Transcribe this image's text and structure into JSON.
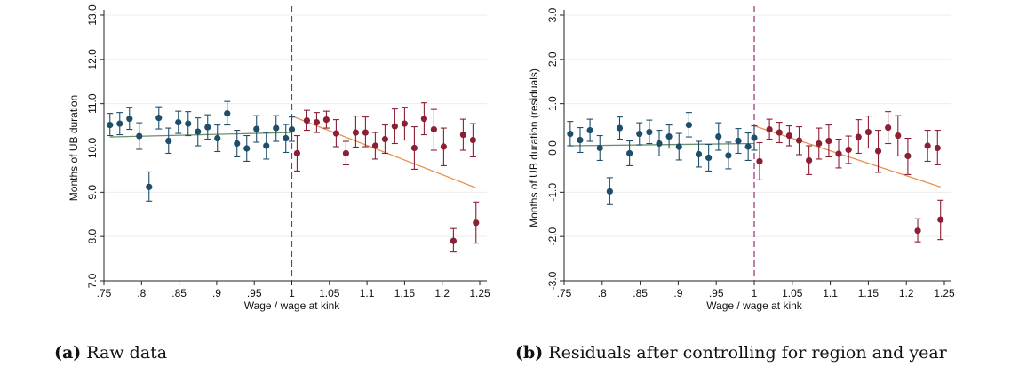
{
  "chart_data": [
    {
      "type": "scatter",
      "caption_tag": "(a)",
      "caption_text": "Raw data",
      "xlabel": "Wage / wage at kink",
      "ylabel": "Months of UB duration",
      "xlim": [
        0.75,
        1.25
      ],
      "ylim": [
        7.0,
        13.0
      ],
      "xticks": [
        ".75",
        ".8",
        ".85",
        ".9",
        ".95",
        "1",
        "1.05",
        "1.1",
        "1.15",
        "1.2",
        "1.25"
      ],
      "xtick_values": [
        0.75,
        0.8,
        0.85,
        0.9,
        0.95,
        1.0,
        1.05,
        1.1,
        1.15,
        1.2,
        1.25
      ],
      "yticks": [
        "7.0",
        "8.0",
        "9.0",
        "10.0",
        "11.0",
        "12.0",
        "13.0"
      ],
      "ytick_values": [
        7,
        8,
        9,
        10,
        11,
        12,
        13
      ],
      "kink_x": 1.0,
      "grid": true,
      "colors": {
        "left": "#1f4e6b",
        "right": "#8b1f33",
        "fit_left": "#6b8f6b",
        "fit_right": "#e8914f",
        "kink": "#9b2a6e"
      },
      "series": [
        {
          "side": "left",
          "x": [
            0.758,
            0.771,
            0.784,
            0.797,
            0.81,
            0.823,
            0.836,
            0.849,
            0.862,
            0.875,
            0.888,
            0.901,
            0.914,
            0.927,
            0.94,
            0.953,
            0.966,
            0.979,
            0.992
          ],
          "y": [
            10.52,
            10.55,
            10.66,
            10.27,
            9.12,
            10.68,
            10.16,
            10.58,
            10.55,
            10.37,
            10.47,
            10.22,
            10.78,
            10.1,
            9.99,
            10.43,
            10.05,
            10.45,
            10.22
          ],
          "lo": [
            10.28,
            10.3,
            10.42,
            9.97,
            8.8,
            10.43,
            9.88,
            10.33,
            10.28,
            10.05,
            10.2,
            9.92,
            10.52,
            9.8,
            9.7,
            10.13,
            9.75,
            10.15,
            9.9
          ],
          "hi": [
            10.78,
            10.8,
            10.92,
            10.57,
            9.46,
            10.93,
            10.45,
            10.83,
            10.82,
            10.68,
            10.75,
            10.52,
            11.05,
            10.4,
            10.28,
            10.73,
            10.35,
            10.73,
            10.53
          ]
        },
        {
          "side": "left_extra",
          "x": [
            1.0
          ],
          "y": [
            10.42
          ],
          "lo": [
            10.15
          ],
          "hi": [
            10.7
          ]
        },
        {
          "side": "right",
          "x": [
            1.007,
            1.02,
            1.033,
            1.046,
            1.059,
            1.072,
            1.085,
            1.098,
            1.111,
            1.124,
            1.137,
            1.15,
            1.163,
            1.176,
            1.189,
            1.202,
            1.215,
            1.228,
            1.241
          ],
          "y": [
            9.88,
            10.62,
            10.58,
            10.64,
            10.33,
            9.88,
            10.35,
            10.35,
            10.05,
            10.2,
            10.49,
            10.55,
            10.0,
            10.66,
            10.42,
            10.03,
            7.9,
            10.3,
            10.18
          ],
          "lo": [
            9.48,
            10.4,
            10.35,
            10.45,
            10.03,
            9.62,
            10.02,
            10.03,
            9.75,
            9.88,
            10.1,
            10.18,
            9.52,
            10.3,
            9.95,
            9.6,
            7.65,
            9.95,
            9.8
          ],
          "hi": [
            10.28,
            10.85,
            10.8,
            10.83,
            10.64,
            10.15,
            10.72,
            10.7,
            10.35,
            10.52,
            10.88,
            10.92,
            10.48,
            11.02,
            10.87,
            10.45,
            8.18,
            10.65,
            10.55
          ]
        },
        {
          "side": "right_extra",
          "x": [
            1.245
          ],
          "y": [
            8.31
          ],
          "lo": [
            7.85
          ],
          "hi": [
            8.78
          ]
        }
      ],
      "fit_left": {
        "x": [
          0.758,
          1.0
        ],
        "y": [
          10.25,
          10.35
        ]
      },
      "fit_right": {
        "x": [
          1.0,
          1.245
        ],
        "y": [
          10.72,
          9.1
        ]
      }
    },
    {
      "type": "scatter",
      "caption_tag": "(b)",
      "caption_text": "Residuals after controlling for region and year",
      "xlabel": "Wage / wage at kink",
      "ylabel": "Months of UB duration (residuals)",
      "xlim": [
        0.75,
        1.25
      ],
      "ylim": [
        -3.0,
        3.0
      ],
      "xticks": [
        ".75",
        ".8",
        ".85",
        ".9",
        ".95",
        "1",
        "1.05",
        "1.1",
        "1.15",
        "1.2",
        "1.25"
      ],
      "xtick_values": [
        0.75,
        0.8,
        0.85,
        0.9,
        0.95,
        1.0,
        1.05,
        1.1,
        1.15,
        1.2,
        1.25
      ],
      "yticks": [
        "-3.0",
        "-2.0",
        "-1.0",
        "0.0",
        "1.0",
        "2.0",
        "3.0"
      ],
      "ytick_values": [
        -3,
        -2,
        -1,
        0,
        1,
        2,
        3
      ],
      "kink_x": 1.0,
      "grid": true,
      "colors": {
        "left": "#1f4e6b",
        "right": "#8b1f33",
        "fit_left": "#6b8f6b",
        "fit_right": "#e8914f",
        "kink": "#9b2a6e"
      },
      "series": [
        {
          "side": "left",
          "x": [
            0.758,
            0.771,
            0.784,
            0.797,
            0.81,
            0.823,
            0.836,
            0.849,
            0.862,
            0.875,
            0.888,
            0.901,
            0.914,
            0.927,
            0.94,
            0.953,
            0.966,
            0.979,
            0.992
          ],
          "y": [
            0.32,
            0.18,
            0.4,
            0.0,
            -0.98,
            0.45,
            -0.12,
            0.32,
            0.36,
            0.1,
            0.26,
            0.03,
            0.52,
            -0.14,
            -0.22,
            0.26,
            -0.17,
            0.16,
            0.03
          ],
          "lo": [
            0.05,
            -0.1,
            0.15,
            -0.28,
            -1.28,
            0.2,
            -0.4,
            0.07,
            0.1,
            -0.18,
            0.0,
            -0.27,
            0.25,
            -0.43,
            -0.52,
            -0.05,
            -0.47,
            -0.12,
            -0.28
          ],
          "hi": [
            0.6,
            0.46,
            0.65,
            0.28,
            -0.67,
            0.7,
            0.16,
            0.57,
            0.63,
            0.4,
            0.52,
            0.33,
            0.8,
            0.15,
            0.08,
            0.57,
            0.13,
            0.44,
            0.34
          ]
        },
        {
          "side": "left_extra",
          "x": [
            1.0
          ],
          "y": [
            0.23
          ],
          "lo": [
            -0.05
          ],
          "hi": [
            0.5
          ]
        },
        {
          "side": "right",
          "x": [
            1.007,
            1.02,
            1.033,
            1.046,
            1.059,
            1.072,
            1.085,
            1.098,
            1.111,
            1.124,
            1.137,
            1.15,
            1.163,
            1.176,
            1.189,
            1.202,
            1.215,
            1.228,
            1.241
          ],
          "y": [
            -0.3,
            0.42,
            0.35,
            0.28,
            0.17,
            -0.28,
            0.1,
            0.16,
            -0.13,
            -0.04,
            0.25,
            0.36,
            -0.07,
            0.46,
            0.28,
            -0.18,
            -1.87,
            0.05,
            0.0
          ],
          "lo": [
            -0.72,
            0.2,
            0.12,
            0.05,
            -0.15,
            -0.6,
            -0.25,
            -0.2,
            -0.45,
            -0.35,
            -0.12,
            0.0,
            -0.55,
            0.1,
            -0.18,
            -0.6,
            -2.12,
            -0.3,
            -0.38
          ],
          "hi": [
            0.12,
            0.65,
            0.58,
            0.5,
            0.48,
            0.05,
            0.45,
            0.52,
            0.2,
            0.27,
            0.64,
            0.72,
            0.4,
            0.82,
            0.73,
            0.22,
            -1.6,
            0.4,
            0.4
          ]
        },
        {
          "side": "right_extra",
          "x": [
            1.245
          ],
          "y": [
            -1.62
          ],
          "lo": [
            -2.07
          ],
          "hi": [
            -1.18
          ]
        }
      ],
      "fit_left": {
        "x": [
          0.758,
          1.0
        ],
        "y": [
          0.05,
          0.1
        ]
      },
      "fit_right": {
        "x": [
          1.0,
          1.245
        ],
        "y": [
          0.5,
          -0.88
        ]
      }
    }
  ]
}
